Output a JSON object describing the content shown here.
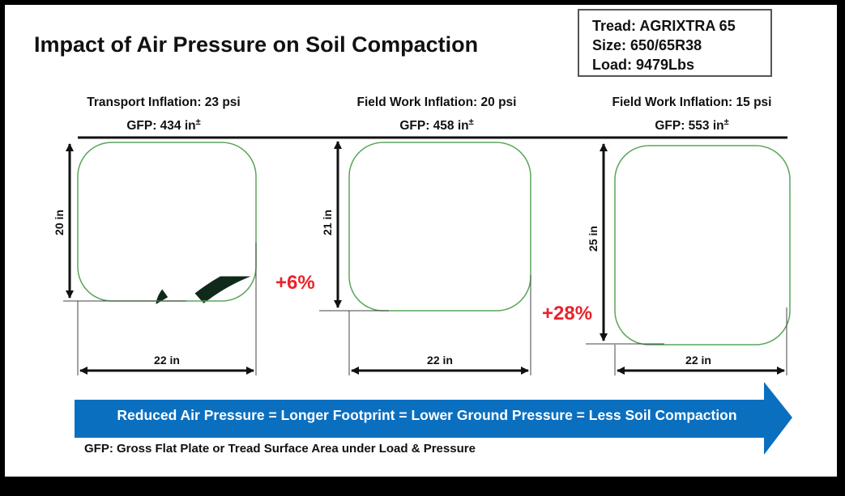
{
  "title": "Impact of Air Pressure on Soil Compaction",
  "spec": {
    "tread": "Tread: AGRIXTRA 65",
    "size": "Size: 650/65R38",
    "load": "Load: 9479Lbs"
  },
  "columns": [
    {
      "inflation": "Transport Inflation: 23 psi",
      "gfp": "GFP: 434 in",
      "height_label": "20 in",
      "width_label": "22 in",
      "increase": ""
    },
    {
      "inflation": "Field Work Inflation: 20 psi",
      "gfp": "GFP: 458 in",
      "height_label": "21 in",
      "width_label": "22 in",
      "increase": "+6%"
    },
    {
      "inflation": "Field Work Inflation: 15 psi",
      "gfp": "GFP: 553 in",
      "height_label": "25 in",
      "width_label": "22 in",
      "increase": "+28%"
    }
  ],
  "gfp_superscript": "±",
  "arrow_text": "Reduced Air Pressure = Longer Footprint = Lower Ground Pressure = Less Soil Compaction",
  "footnote": "GFP: Gross Flat Plate or Tread Surface Area under Load & Pressure",
  "colors": {
    "arrow": "#0b6fc0",
    "increase": "#e8232a",
    "tread": "#0f2a1a",
    "footprint_outline": "#5aa55a"
  },
  "icons": [
    "tire-footprint-icon"
  ]
}
